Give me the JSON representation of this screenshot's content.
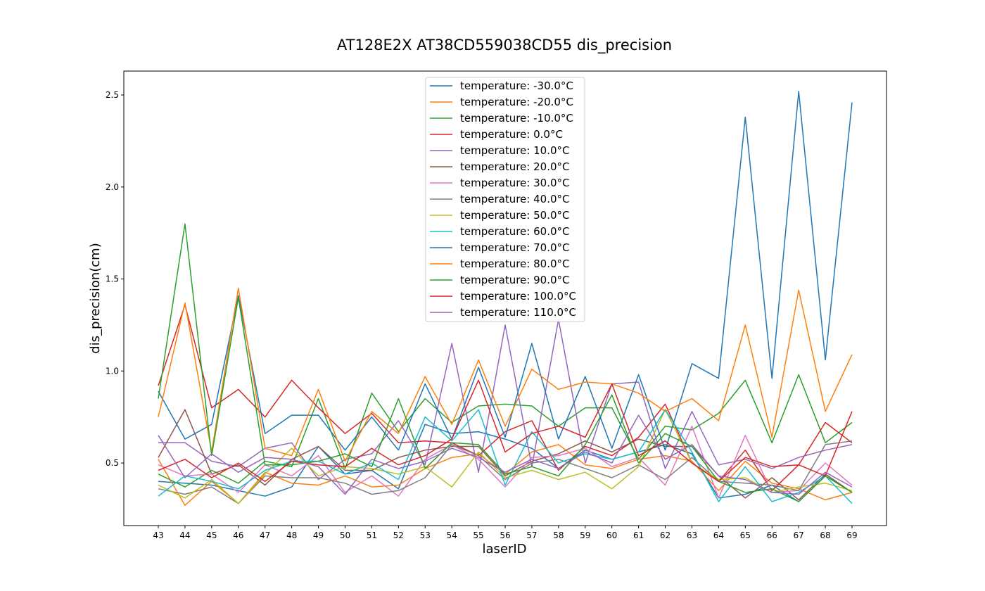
{
  "chart_data": {
    "type": "line",
    "title": "AT128E2X AT38CD559038CD55 dis_precision",
    "xlabel": "laserID",
    "ylabel": "dis_precision(cm)",
    "x": [
      43,
      44,
      45,
      46,
      47,
      48,
      49,
      50,
      51,
      52,
      53,
      54,
      55,
      56,
      57,
      58,
      59,
      60,
      61,
      62,
      63,
      64,
      65,
      66,
      67,
      68,
      69
    ],
    "x_ticks": [
      "43",
      "44",
      "45",
      "46",
      "47",
      "48",
      "49",
      "50",
      "51",
      "52",
      "53",
      "54",
      "55",
      "56",
      "57",
      "58",
      "59",
      "60",
      "61",
      "62",
      "63",
      "64",
      "65",
      "66",
      "67",
      "68",
      "69"
    ],
    "ylim": [
      0.16,
      2.63
    ],
    "y_ticks": [
      "0.5",
      "1.0",
      "1.5",
      "2.0",
      "2.5"
    ],
    "legend_position": "top-center",
    "grid": false,
    "series": [
      {
        "name": "temperature: -30.0°C",
        "color": "#1f77b4",
        "values": [
          0.4,
          0.39,
          0.38,
          0.35,
          0.32,
          0.37,
          0.59,
          0.44,
          0.46,
          0.36,
          0.71,
          0.66,
          0.67,
          0.63,
          0.58,
          0.47,
          0.57,
          0.52,
          0.56,
          0.6,
          0.55,
          0.31,
          0.33,
          0.38,
          0.29,
          0.43,
          0.34
        ]
      },
      {
        "name": "temperature: -20.0°C",
        "color": "#ff7f0e",
        "values": [
          0.52,
          0.27,
          0.4,
          0.28,
          0.45,
          0.39,
          0.38,
          0.43,
          0.37,
          0.38,
          0.47,
          0.53,
          0.55,
          0.44,
          0.56,
          0.6,
          0.49,
          0.47,
          0.52,
          0.54,
          0.51,
          0.35,
          0.51,
          0.39,
          0.36,
          0.3,
          0.34
        ]
      },
      {
        "name": "temperature: -10.0°C",
        "color": "#2ca02c",
        "values": [
          0.44,
          0.37,
          0.46,
          0.39,
          0.51,
          0.48,
          0.85,
          0.47,
          0.88,
          0.67,
          0.85,
          0.72,
          0.81,
          0.82,
          0.81,
          0.7,
          0.8,
          0.8,
          0.52,
          0.7,
          0.68,
          0.77,
          0.95,
          0.61,
          0.98,
          0.61,
          0.72
        ]
      },
      {
        "name": "temperature: 0.0°C",
        "color": "#d62728",
        "values": [
          0.92,
          1.36,
          0.8,
          0.9,
          0.75,
          0.95,
          0.8,
          0.66,
          0.77,
          0.61,
          0.62,
          0.61,
          0.54,
          0.67,
          0.73,
          0.46,
          0.59,
          0.54,
          0.64,
          0.82,
          0.5,
          0.4,
          0.57,
          0.35,
          0.49,
          0.72,
          0.61
        ]
      },
      {
        "name": "temperature: 10.0°C",
        "color": "#9467bd",
        "values": [
          0.61,
          0.61,
          0.51,
          0.48,
          0.58,
          0.61,
          0.41,
          0.52,
          0.55,
          0.73,
          0.49,
          1.15,
          0.45,
          1.25,
          0.48,
          1.28,
          0.5,
          0.93,
          0.94,
          0.47,
          0.78,
          0.49,
          0.52,
          0.47,
          0.53,
          0.57,
          0.6
        ]
      },
      {
        "name": "temperature: 20.0°C",
        "color": "#8c564b",
        "values": [
          0.53,
          0.79,
          0.44,
          0.49,
          0.38,
          0.52,
          0.59,
          0.46,
          0.46,
          0.53,
          0.57,
          0.59,
          0.59,
          0.43,
          0.51,
          0.55,
          0.62,
          0.56,
          0.63,
          0.59,
          0.59,
          0.43,
          0.31,
          0.42,
          0.3,
          0.44,
          0.34
        ]
      },
      {
        "name": "temperature: 30.0°C",
        "color": "#e377c2",
        "values": [
          0.49,
          0.43,
          0.44,
          0.34,
          0.49,
          0.43,
          0.54,
          0.34,
          0.43,
          0.32,
          0.52,
          0.6,
          0.52,
          0.37,
          0.53,
          0.54,
          0.58,
          0.48,
          0.53,
          0.38,
          0.7,
          0.31,
          0.65,
          0.34,
          0.35,
          0.5,
          0.38
        ]
      },
      {
        "name": "temperature: 40.0°C",
        "color": "#7f7f7f",
        "values": [
          0.36,
          0.33,
          0.37,
          0.28,
          0.43,
          0.42,
          0.42,
          0.39,
          0.33,
          0.35,
          0.42,
          0.6,
          0.54,
          0.41,
          0.5,
          0.52,
          0.47,
          0.42,
          0.49,
          0.41,
          0.53,
          0.4,
          0.39,
          0.38,
          0.35,
          0.6,
          0.62
        ]
      },
      {
        "name": "temperature: 50.0°C",
        "color": "#bcbd22",
        "values": [
          0.38,
          0.31,
          0.41,
          0.28,
          0.44,
          0.58,
          0.43,
          0.48,
          0.47,
          0.44,
          0.48,
          0.37,
          0.56,
          0.42,
          0.46,
          0.41,
          0.45,
          0.36,
          0.48,
          0.79,
          0.5,
          0.41,
          0.42,
          0.34,
          0.37,
          0.39,
          0.35
        ]
      },
      {
        "name": "temperature: 60.0°C",
        "color": "#17becf",
        "values": [
          0.32,
          0.43,
          0.4,
          0.36,
          0.46,
          0.51,
          0.51,
          0.44,
          0.5,
          0.41,
          0.75,
          0.62,
          0.79,
          0.38,
          0.67,
          0.5,
          0.55,
          0.52,
          0.56,
          0.79,
          0.56,
          0.29,
          0.48,
          0.29,
          0.34,
          0.43,
          0.28
        ]
      },
      {
        "name": "temperature: 70.0°C",
        "color": "#1f77b4",
        "values": [
          0.89,
          0.63,
          0.71,
          1.41,
          0.66,
          0.76,
          0.76,
          0.57,
          0.75,
          0.57,
          0.93,
          0.63,
          1.02,
          0.64,
          1.15,
          0.63,
          0.97,
          0.58,
          0.98,
          0.57,
          1.04,
          0.96,
          2.38,
          0.96,
          2.52,
          1.06,
          2.46
        ]
      },
      {
        "name": "temperature: 80.0°C",
        "color": "#ff7f0e",
        "values": [
          0.75,
          1.37,
          0.56,
          1.45,
          0.58,
          0.54,
          0.9,
          0.51,
          0.78,
          0.66,
          0.97,
          0.71,
          1.06,
          0.7,
          1.01,
          0.9,
          0.94,
          0.93,
          0.88,
          0.78,
          0.85,
          0.73,
          1.25,
          0.64,
          1.44,
          0.78,
          1.09
        ]
      },
      {
        "name": "temperature: 90.0°C",
        "color": "#2ca02c",
        "values": [
          0.85,
          1.8,
          0.54,
          1.4,
          0.49,
          0.49,
          0.51,
          0.55,
          0.48,
          0.85,
          0.47,
          0.61,
          0.6,
          0.44,
          0.48,
          0.43,
          0.6,
          0.87,
          0.5,
          0.66,
          0.59,
          0.4,
          0.34,
          0.36,
          0.29,
          0.43,
          0.34
        ]
      },
      {
        "name": "temperature: 100.0°C",
        "color": "#d62728",
        "values": [
          0.46,
          0.52,
          0.42,
          0.5,
          0.4,
          0.51,
          0.49,
          0.48,
          0.58,
          0.49,
          0.54,
          0.63,
          0.95,
          0.56,
          0.66,
          0.7,
          0.64,
          0.93,
          0.54,
          0.62,
          0.5,
          0.4,
          0.53,
          0.48,
          0.49,
          0.43,
          0.78
        ]
      },
      {
        "name": "temperature: 110.0°C",
        "color": "#9467bd",
        "values": [
          0.65,
          0.42,
          0.55,
          0.45,
          0.53,
          0.52,
          0.48,
          0.33,
          0.52,
          0.47,
          0.51,
          0.58,
          0.53,
          0.45,
          0.52,
          0.47,
          0.56,
          0.5,
          0.76,
          0.52,
          0.6,
          0.43,
          0.41,
          0.34,
          0.33,
          0.45,
          0.37
        ]
      }
    ]
  }
}
